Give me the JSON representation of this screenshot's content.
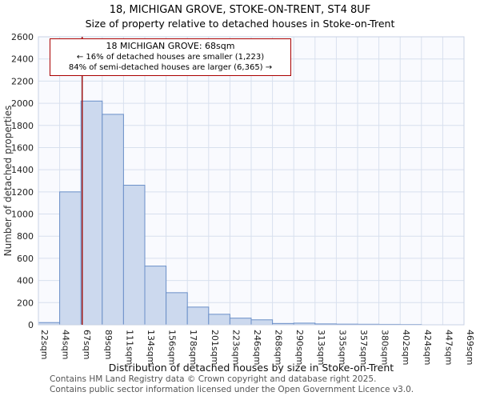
{
  "page": {
    "title": "18, MICHIGAN GROVE, STOKE-ON-TRENT, ST4 8UF",
    "subtitle": "Size of property relative to detached houses in Stoke-on-Trent"
  },
  "annotation": {
    "line1": "18 MICHIGAN GROVE: 68sqm",
    "line2": "← 16% of detached houses are smaller (1,223)",
    "line3": "84% of semi-detached houses are larger (6,365) →"
  },
  "footer": {
    "line1": "Contains HM Land Registry data © Crown copyright and database right 2025.",
    "line2": "Contains public sector information licensed under the Open Government Licence v3.0."
  },
  "chart_data": {
    "type": "bar",
    "title": "18, MICHIGAN GROVE, STOKE-ON-TRENT, ST4 8UF",
    "subtitle": "Size of property relative to detached houses in Stoke-on-Trent",
    "xlabel": "Distribution of detached houses by size in Stoke-on-Trent",
    "ylabel": "Number of detached properties",
    "categories": [
      "22sqm",
      "44sqm",
      "67sqm",
      "89sqm",
      "111sqm",
      "134sqm",
      "156sqm",
      "178sqm",
      "201sqm",
      "223sqm",
      "246sqm",
      "268sqm",
      "290sqm",
      "313sqm",
      "335sqm",
      "357sqm",
      "380sqm",
      "402sqm",
      "424sqm",
      "447sqm",
      "469sqm"
    ],
    "values": [
      20,
      1200,
      2020,
      1900,
      1260,
      530,
      290,
      160,
      95,
      60,
      45,
      12,
      15,
      8,
      6,
      5,
      4,
      3,
      0,
      0
    ],
    "ylim": [
      0,
      2600
    ],
    "ytick_step": 200,
    "grid": true,
    "legend": "none",
    "marker": {
      "label": "18 MICHIGAN GROVE",
      "value_sqm": 68,
      "color": "#a01818"
    },
    "colors": {
      "bar_fill": "#ccd9ee",
      "bar_border": "#6a8fc8",
      "grid": "#d8e0ee",
      "plot_bg": "#f9fafe",
      "plot_border": "#c8d2e4",
      "annotation_border": "#aa0000",
      "text": "#222222"
    }
  }
}
